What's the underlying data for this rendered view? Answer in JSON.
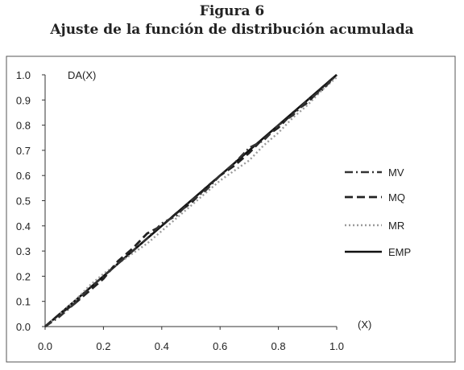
{
  "figure": {
    "label": "Figura 6",
    "title": "Ajuste de la función de distribución acumulada"
  },
  "chart_data": {
    "type": "line",
    "ylabel": "DA(X)",
    "xlabel": "(X)",
    "xlim": [
      0.0,
      1.0
    ],
    "ylim": [
      0.0,
      1.0
    ],
    "xticks": [
      "0.0",
      "0.2",
      "0.4",
      "0.6",
      "0.8",
      "1.0"
    ],
    "yticks": [
      "0.0",
      "0.1",
      "0.2",
      "0.3",
      "0.4",
      "0.5",
      "0.6",
      "0.7",
      "0.8",
      "0.9",
      "1.0"
    ],
    "grid": false,
    "legend_position": "right",
    "series": [
      {
        "name": "MV",
        "style": "dashdot",
        "color": "#333333",
        "x": [
          0.0,
          0.05,
          0.1,
          0.15,
          0.2,
          0.25,
          0.3,
          0.35,
          0.4,
          0.45,
          0.5,
          0.55,
          0.6,
          0.65,
          0.7,
          0.75,
          0.8,
          0.85,
          0.9,
          0.95,
          1.0
        ],
        "y": [
          0.0,
          0.04,
          0.09,
          0.15,
          0.2,
          0.25,
          0.3,
          0.35,
          0.41,
          0.44,
          0.5,
          0.54,
          0.6,
          0.65,
          0.71,
          0.74,
          0.8,
          0.84,
          0.9,
          0.94,
          1.0
        ]
      },
      {
        "name": "MQ",
        "style": "dash",
        "color": "#222222",
        "x": [
          0.0,
          0.05,
          0.1,
          0.15,
          0.2,
          0.25,
          0.3,
          0.35,
          0.4,
          0.45,
          0.5,
          0.55,
          0.6,
          0.65,
          0.7,
          0.75,
          0.8,
          0.85,
          0.9,
          0.95,
          1.0
        ],
        "y": [
          0.0,
          0.05,
          0.09,
          0.14,
          0.19,
          0.26,
          0.31,
          0.37,
          0.4,
          0.45,
          0.49,
          0.55,
          0.6,
          0.64,
          0.69,
          0.75,
          0.79,
          0.85,
          0.89,
          0.95,
          1.0
        ]
      },
      {
        "name": "MR",
        "style": "dot",
        "color": "#9a9a9a",
        "x": [
          0.0,
          0.05,
          0.1,
          0.15,
          0.2,
          0.25,
          0.3,
          0.35,
          0.4,
          0.45,
          0.5,
          0.55,
          0.6,
          0.65,
          0.7,
          0.75,
          0.8,
          0.85,
          0.9,
          0.95,
          1.0
        ],
        "y": [
          0.0,
          0.05,
          0.1,
          0.16,
          0.21,
          0.25,
          0.29,
          0.33,
          0.38,
          0.43,
          0.48,
          0.53,
          0.58,
          0.62,
          0.66,
          0.72,
          0.77,
          0.83,
          0.88,
          0.94,
          0.99
        ]
      },
      {
        "name": "EMP",
        "style": "solid",
        "color": "#111111",
        "x": [
          0.0,
          0.1,
          0.2,
          0.3,
          0.4,
          0.5,
          0.6,
          0.7,
          0.8,
          0.9,
          1.0
        ],
        "y": [
          0.0,
          0.1,
          0.2,
          0.3,
          0.4,
          0.5,
          0.6,
          0.7,
          0.8,
          0.9,
          1.0
        ]
      }
    ]
  }
}
